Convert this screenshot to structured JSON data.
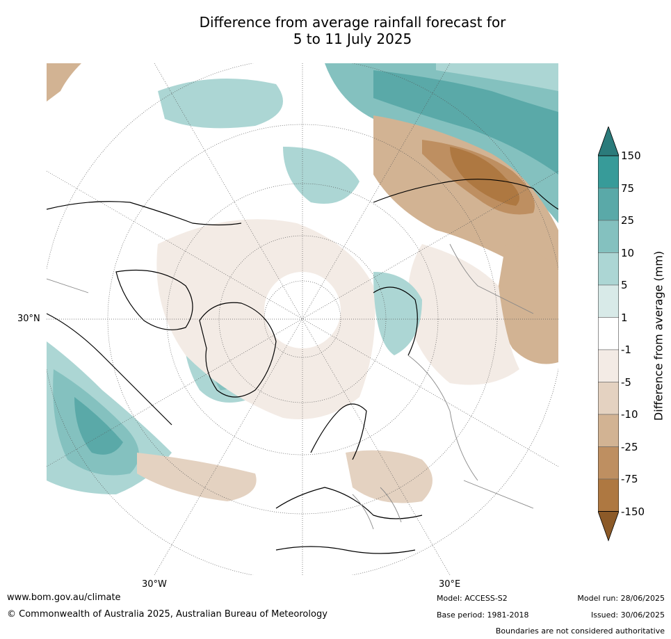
{
  "title_line1": "Difference from average rainfall forecast for",
  "title_line2": "5 to 11 July 2025",
  "axis_labels": {
    "lat_30n": "30°N",
    "lon_30w": "30°W",
    "lon_30e": "30°E"
  },
  "colorbar": {
    "title": "Difference from average (mm)",
    "ticks": [
      "150",
      "75",
      "25",
      "10",
      "5",
      "1",
      "-1",
      "-5",
      "-10",
      "-25",
      "-75",
      "-150"
    ],
    "colors": {
      "over": "#2b7b7b",
      "b150_75": "#379b99",
      "b75_25": "#5aa9a8",
      "b25_10": "#84c1bf",
      "b10_5": "#acd6d4",
      "b5_1": "#d8eae8",
      "b1_m1": "#ffffff",
      "bm1_m5": "#f3ebe5",
      "bm5_m10": "#e4d2c1",
      "bm10_m25": "#d2b393",
      "bm25_m75": "#be8f61",
      "bm75_m150": "#ae7841",
      "under": "#8c5a28"
    }
  },
  "footer": {
    "website": "www.bom.gov.au/climate",
    "copyright": "© Commonwealth of Australia 2025, Australian Bureau of Meteorology",
    "model": "Model: ACCESS-S2",
    "model_run": "Model run: 28/06/2025",
    "base_period": "Base period: 1981-2018",
    "issued": "Issued: 30/06/2025",
    "disclaimer": "Boundaries are not considered authoritative"
  }
}
